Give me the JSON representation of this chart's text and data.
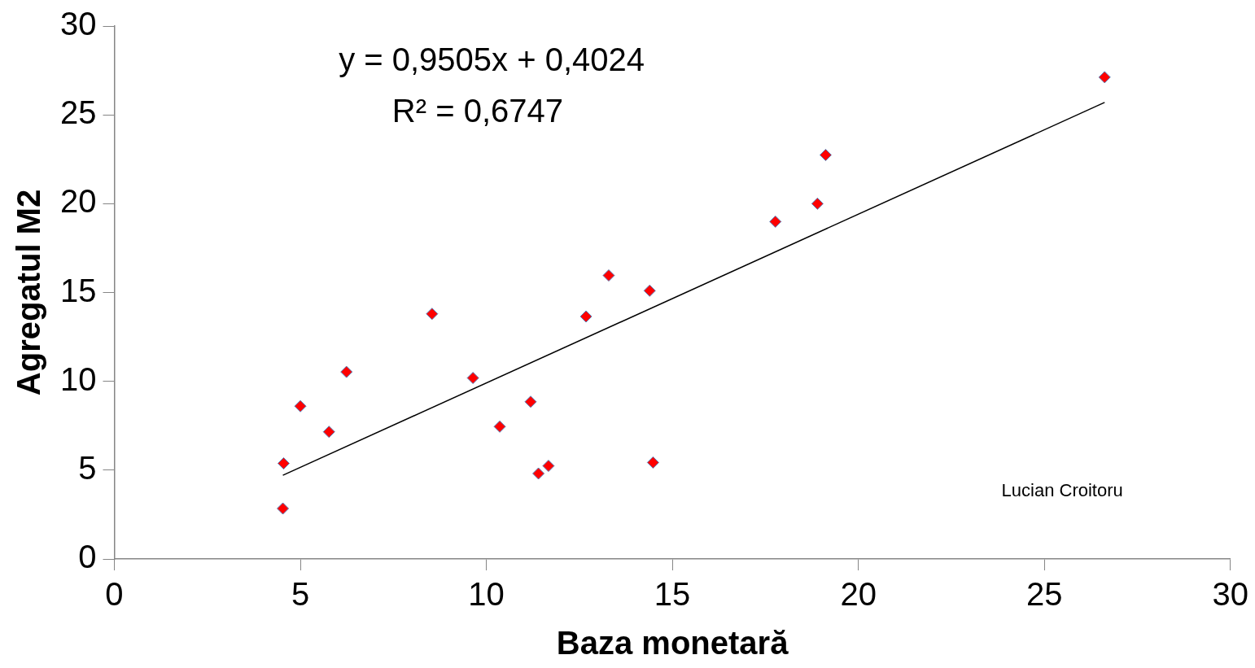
{
  "chart_data": {
    "type": "scatter",
    "xlabel": "Baza monetară",
    "ylabel": "Agregatul M2",
    "xlim": [
      0,
      30
    ],
    "xticks": [
      0,
      5,
      10,
      15,
      20,
      25,
      30
    ],
    "ylim": [
      0,
      30
    ],
    "yticks": [
      0,
      5,
      10,
      15,
      20,
      25,
      30
    ],
    "grid": false,
    "legend": false,
    "marker": "diamond",
    "annotations": [
      "y = 0,9505x + 0,4024",
      "R² = 0,6747",
      "Lucian Croitoru"
    ],
    "series": [
      {
        "color": "#ff0000",
        "x": [
          4.53,
          4.55,
          5.0,
          5.77,
          6.24,
          8.54,
          9.64,
          10.36,
          11.19,
          11.4,
          11.67,
          12.68,
          13.29,
          14.39,
          14.48,
          17.77,
          18.9,
          19.12,
          26.62
        ],
        "values": [
          2.84,
          5.38,
          8.6,
          7.16,
          10.53,
          13.8,
          10.19,
          7.45,
          8.85,
          4.81,
          5.24,
          13.65,
          15.96,
          15.1,
          5.43,
          18.99,
          20.0,
          22.74,
          27.12
        ]
      },
      {
        "type": "line",
        "color": "#000000",
        "marker": "none",
        "x": [
          4.53,
          26.62
        ],
        "values": [
          4.71,
          25.7
        ]
      }
    ]
  }
}
